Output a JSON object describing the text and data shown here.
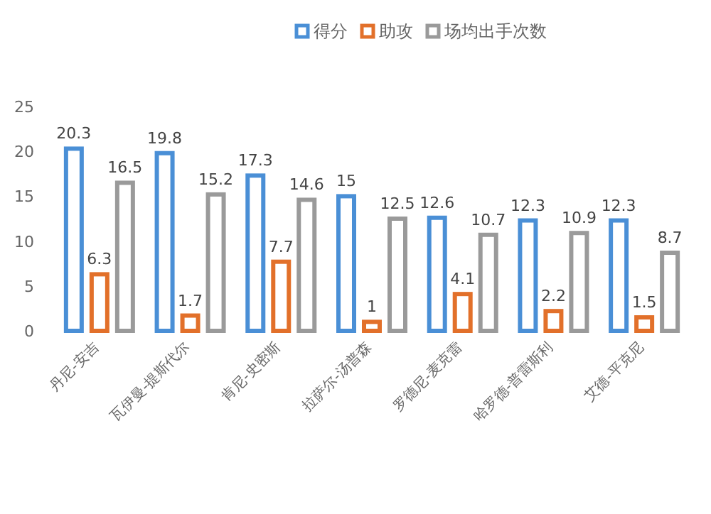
{
  "chart_data": {
    "type": "bar",
    "categories": [
      "丹尼-安吉",
      "瓦伊曼-提斯代尔",
      "肯尼-史密斯",
      "拉萨尔-汤普森",
      "罗德尼-麦克雷",
      "哈罗德-普雷斯利",
      "艾德-平克尼"
    ],
    "series": [
      {
        "name": "得分",
        "color": "#4a8fd6",
        "values": [
          20.3,
          19.8,
          17.3,
          15,
          12.6,
          12.3,
          12.3
        ]
      },
      {
        "name": "助攻",
        "color": "#e2702a",
        "values": [
          6.3,
          1.7,
          7.7,
          1,
          4.1,
          2.2,
          1.5
        ]
      },
      {
        "name": "场均出手次数",
        "color": "#9a9a9a",
        "values": [
          16.5,
          15.2,
          14.6,
          12.5,
          10.7,
          10.9,
          8.7
        ]
      }
    ],
    "ylim": [
      0,
      25
    ],
    "yticks": [
      0,
      5,
      10,
      15,
      20,
      25
    ],
    "grid": false,
    "legend": "top",
    "data_labels": true
  }
}
